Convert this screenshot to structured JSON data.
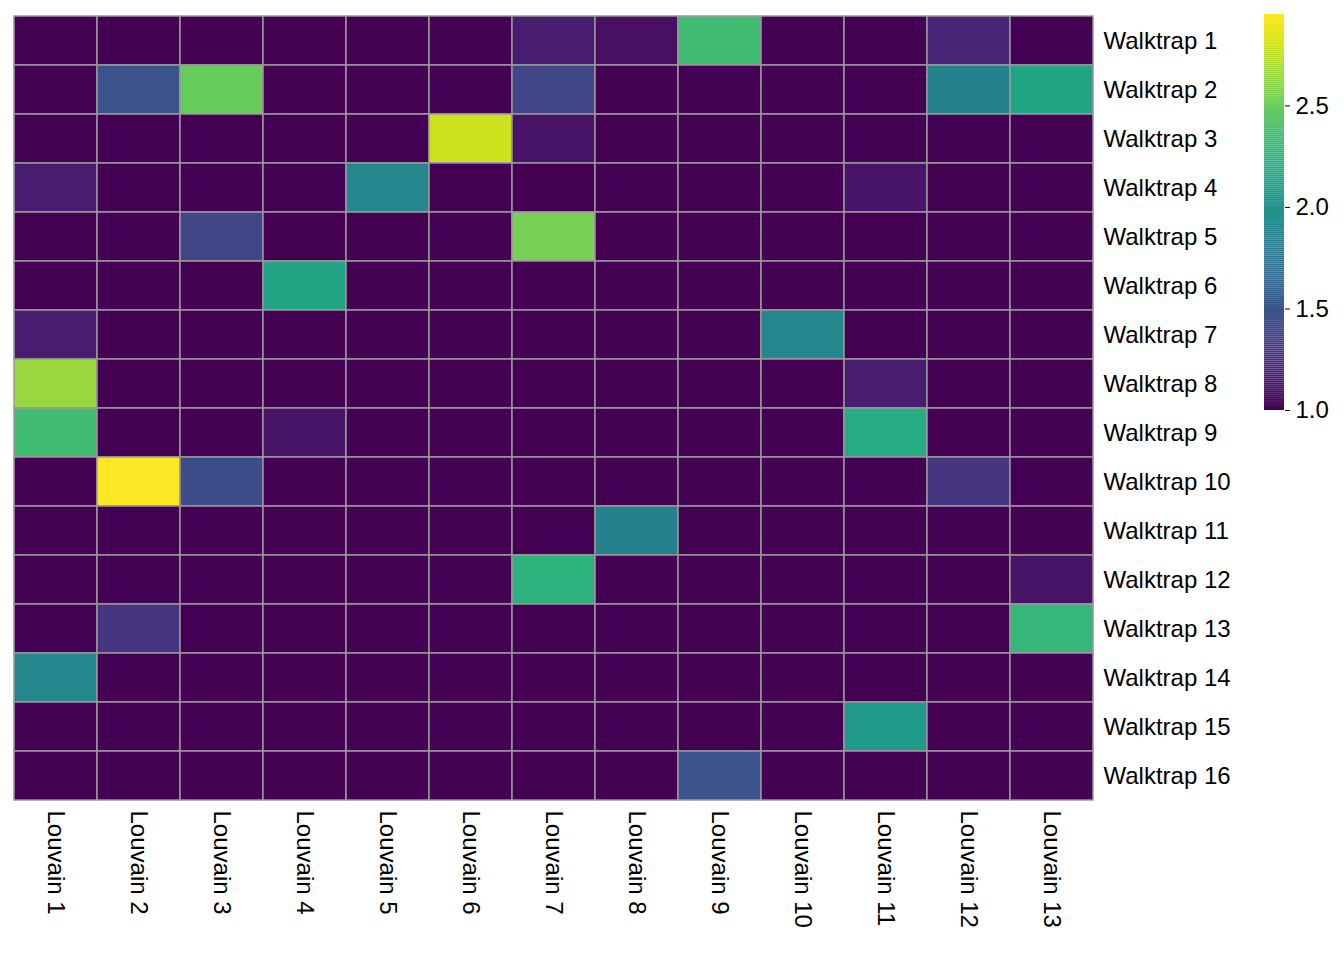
{
  "chart_data": {
    "type": "heatmap",
    "color": "viridis",
    "columns": [
      "Louvain 1",
      "Louvain 2",
      "Louvain 3",
      "Louvain 4",
      "Louvain 5",
      "Louvain 6",
      "Louvain 7",
      "Louvain 8",
      "Louvain 9",
      "Louvain 10",
      "Louvain 11",
      "Louvain 12",
      "Louvain 13"
    ],
    "rows": [
      "Walktrap 1",
      "Walktrap 2",
      "Walktrap 3",
      "Walktrap 4",
      "Walktrap 5",
      "Walktrap 6",
      "Walktrap 7",
      "Walktrap 8",
      "Walktrap 9",
      "Walktrap 10",
      "Walktrap 11",
      "Walktrap 12",
      "Walktrap 13",
      "Walktrap 14",
      "Walktrap 15",
      "Walktrap 16"
    ],
    "cells": [
      [
        1,
        1,
        1,
        1,
        1,
        1,
        1.15,
        1.08,
        2.35,
        1,
        1,
        1.2,
        1
      ],
      [
        1,
        1.5,
        2.5,
        1,
        1,
        1,
        1.4,
        1,
        1,
        1,
        1,
        1.85,
        2.15
      ],
      [
        1,
        1,
        1,
        1,
        1,
        2.8,
        1.1,
        1,
        1,
        1,
        1,
        1,
        1
      ],
      [
        1.15,
        1,
        1,
        1,
        1.9,
        1,
        1,
        1,
        1,
        1,
        1.1,
        1,
        1
      ],
      [
        1,
        1,
        1.4,
        1,
        1,
        1,
        2.55,
        1,
        1,
        1,
        1,
        1,
        1
      ],
      [
        1,
        1,
        1,
        2.15,
        1,
        1,
        1,
        1,
        1,
        1,
        1,
        1,
        1
      ],
      [
        1.15,
        1,
        1,
        1,
        1,
        1,
        1,
        1,
        1,
        1.9,
        1,
        1,
        1
      ],
      [
        2.65,
        1,
        1,
        1,
        1,
        1,
        1,
        1,
        1,
        1,
        1.15,
        1,
        1
      ],
      [
        2.35,
        1,
        1,
        1.1,
        1,
        1,
        1,
        1,
        1,
        1,
        2.2,
        1,
        1
      ],
      [
        1,
        2.95,
        1.45,
        1,
        1,
        1,
        1,
        1,
        1,
        1,
        1,
        1.3,
        1
      ],
      [
        1,
        1,
        1,
        1,
        1,
        1,
        1,
        1.85,
        1,
        1,
        1,
        1,
        1
      ],
      [
        1,
        1,
        1,
        1,
        1,
        1,
        2.25,
        1,
        1,
        1,
        1,
        1,
        1.1
      ],
      [
        1,
        1.3,
        1,
        1,
        1,
        1,
        1,
        1,
        1,
        1,
        1,
        1,
        2.3
      ],
      [
        1.9,
        1,
        1,
        1,
        1,
        1,
        1,
        1,
        1,
        1,
        1,
        1,
        1
      ],
      [
        1,
        1,
        1,
        1,
        1,
        1,
        1,
        1,
        1,
        1,
        2.05,
        1,
        1
      ],
      [
        1,
        1,
        1,
        1,
        1,
        1,
        1,
        1,
        1.5,
        1,
        1,
        1,
        1
      ]
    ],
    "color_range": [
      1,
      2.95
    ],
    "color_ticks": [
      1,
      1.5,
      2,
      2.5
    ]
  }
}
